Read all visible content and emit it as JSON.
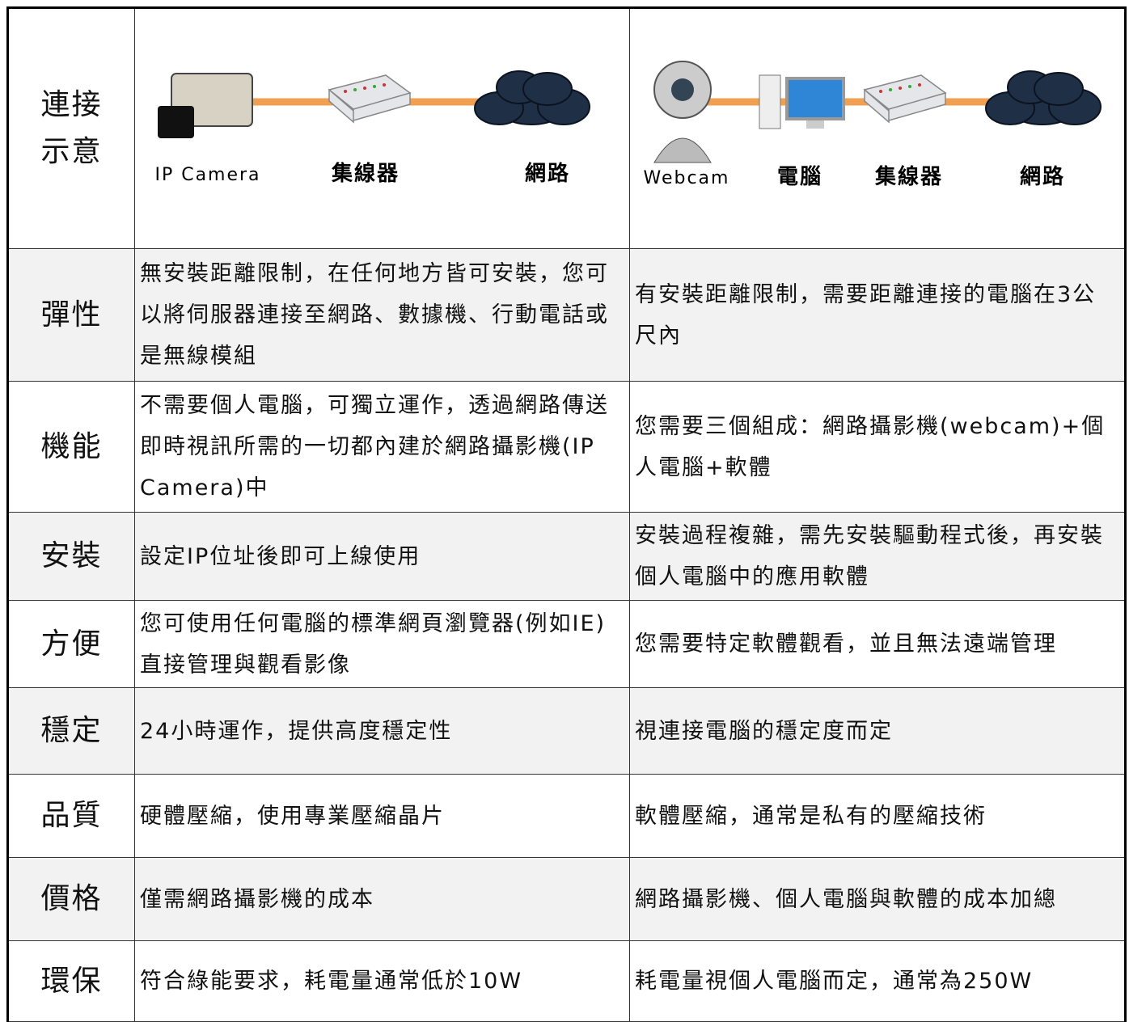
{
  "table": {
    "rows": [
      [
        "連接示意",
        "",
        ""
      ],
      [
        "彈性",
        "無安裝距離限制，在任何地方皆可安裝，您可以將伺服器連接至網路、數據機、行動電話或是無線模組",
        "有安裝距離限制，需要距離連接的電腦在3公尺內"
      ],
      [
        "機能",
        "不需要個人電腦，可獨立運作，透過網路傳送即時視訊所需的一切都內建於網路攝影機(IP Camera)中",
        "您需要三個組成：網路攝影機(webcam)+個人電腦+軟體"
      ],
      [
        "安裝",
        "設定IP位址後即可上線使用",
        "安裝過程複雜，需先安裝驅動程式後，再安裝個人電腦中的應用軟體"
      ],
      [
        "方便",
        "您可使用任何電腦的標準網頁瀏覽器(例如IE)直接管理與觀看影像",
        "您需要特定軟體觀看，並且無法遠端管理"
      ],
      [
        "穩定",
        "24小時運作，提供高度穩定性",
        "視連接電腦的穩定度而定"
      ],
      [
        "品質",
        "硬體壓縮，使用專業壓縮晶片",
        "軟體壓縮，通常是私有的壓縮技術"
      ],
      [
        "價格",
        "僅需網路攝影機的成本",
        "網路攝影機、個人電腦與軟體的成本加總"
      ],
      [
        "環保",
        "符合綠能要求，耗電量通常低於10W",
        "耗電量視個人電腦而定，通常為250W"
      ]
    ]
  },
  "diagram": {
    "left": [
      "IP Camera",
      "集線器",
      "網路"
    ],
    "right": [
      "Webcam",
      "電腦",
      "集線器",
      "網路"
    ]
  }
}
